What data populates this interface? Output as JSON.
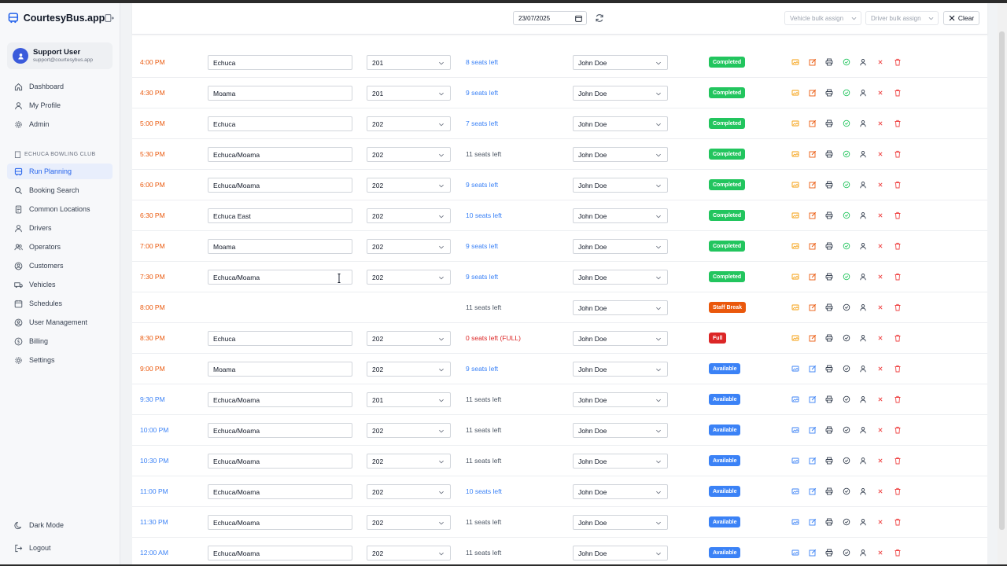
{
  "app": {
    "name": "CourtesyBus.app"
  },
  "user": {
    "name": "Support User",
    "email": "support@courtesybus.app"
  },
  "nav_top": [
    "Dashboard",
    "My Profile",
    "Admin"
  ],
  "org": "ECHUCA BOWLING CLUB",
  "nav_org": [
    "Run Planning",
    "Booking Search",
    "Common Locations",
    "Drivers",
    "Operators",
    "Customers",
    "Vehicles",
    "Schedules",
    "User Management",
    "Billing",
    "Settings"
  ],
  "nav_bottom": [
    "Dark Mode",
    "Logout"
  ],
  "toolbar": {
    "date": "23/07/2025",
    "vehicle_bulk": "Vehicle bulk assign",
    "driver_bulk": "Driver bulk assign",
    "clear": "Clear"
  },
  "rows": [
    {
      "time": "4:00 PM",
      "location": "Echuca",
      "vehicle": "201",
      "seats": "8 seats left",
      "driver": "John Doe",
      "status": "Completed"
    },
    {
      "time": "4:30 PM",
      "location": "Moama",
      "vehicle": "201",
      "seats": "9 seats left",
      "driver": "John Doe",
      "status": "Completed"
    },
    {
      "time": "5:00 PM",
      "location": "Echuca",
      "vehicle": "202",
      "seats": "7 seats left",
      "driver": "John Doe",
      "status": "Completed"
    },
    {
      "time": "5:30 PM",
      "location": "Echuca/Moama",
      "vehicle": "202",
      "seats": "11 seats left",
      "driver": "John Doe",
      "status": "Completed"
    },
    {
      "time": "6:00 PM",
      "location": "Echuca/Moama",
      "vehicle": "202",
      "seats": "9 seats left",
      "driver": "John Doe",
      "status": "Completed"
    },
    {
      "time": "6:30 PM",
      "location": "Echuca East",
      "vehicle": "202",
      "seats": "10 seats left",
      "driver": "John Doe",
      "status": "Completed"
    },
    {
      "time": "7:00 PM",
      "location": "Moama",
      "vehicle": "202",
      "seats": "9 seats left",
      "driver": "John Doe",
      "status": "Completed"
    },
    {
      "time": "7:30 PM",
      "location": "Echuca/Moama",
      "vehicle": "202",
      "seats": "9 seats left",
      "driver": "John Doe",
      "status": "Completed"
    },
    {
      "time": "8:00 PM",
      "location": "",
      "vehicle": "",
      "seats": "11 seats left",
      "driver": "John Doe",
      "status": "Staff Break"
    },
    {
      "time": "8:30 PM",
      "location": "Echuca",
      "vehicle": "202",
      "seats": "0 seats left (FULL)",
      "driver": "John Doe",
      "status": "Full"
    },
    {
      "time": "9:00 PM",
      "location": "Moama",
      "vehicle": "202",
      "seats": "9 seats left",
      "driver": "John Doe",
      "status": "Available"
    },
    {
      "time": "9:30 PM",
      "location": "Echuca/Moama",
      "vehicle": "201",
      "seats": "11 seats left",
      "driver": "John Doe",
      "status": "Available"
    },
    {
      "time": "10:00 PM",
      "location": "Echuca/Moama",
      "vehicle": "202",
      "seats": "11 seats left",
      "driver": "John Doe",
      "status": "Available"
    },
    {
      "time": "10:30 PM",
      "location": "Echuca/Moama",
      "vehicle": "202",
      "seats": "11 seats left",
      "driver": "John Doe",
      "status": "Available"
    },
    {
      "time": "11:00 PM",
      "location": "Echuca/Moama",
      "vehicle": "202",
      "seats": "10 seats left",
      "driver": "John Doe",
      "status": "Available"
    },
    {
      "time": "11:30 PM",
      "location": "Echuca/Moama",
      "vehicle": "202",
      "seats": "11 seats left",
      "driver": "John Doe",
      "status": "Available"
    },
    {
      "time": "12:00 AM",
      "location": "Echuca/Moama",
      "vehicle": "202",
      "seats": "11 seats left",
      "driver": "John Doe",
      "status": "Available"
    }
  ],
  "colors": {
    "accent": "#2563eb",
    "completed": "#22c55e",
    "staff_break": "#ea580c",
    "full": "#dc2626",
    "available": "#3b82f6"
  }
}
